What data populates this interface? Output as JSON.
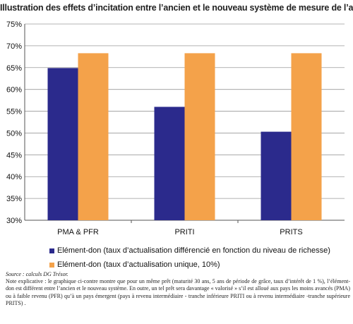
{
  "chart_data": {
    "type": "bar",
    "title": "Illustration des effets d’incitation entre l’ancien et le nouveau système de mesure de l’aide",
    "categories": [
      "PMA & PFR",
      "PRITI",
      "PRITS"
    ],
    "series": [
      {
        "name": "Elément-don (taux d’actualisation différencié en fonction du niveau de richesse)",
        "values": [
          64.9,
          56.0,
          50.3
        ],
        "color": "#2b2a8c"
      },
      {
        "name": "Elément-don (taux d’actualisation unique, 10%)",
        "values": [
          68.3,
          68.3,
          68.3
        ],
        "color": "#f4a24a"
      }
    ],
    "ylim": [
      30,
      75
    ],
    "yticks": [
      "30%",
      "35%",
      "40%",
      "45%",
      "50%",
      "55%",
      "60%",
      "65%",
      "70%",
      "75%"
    ],
    "grid": true,
    "legend_position": "bottom"
  },
  "source": "Source : calculs DG Trésor.",
  "note": "Note explicative : le graphique ci-contre montre que pour un même prêt (maturité 30 ans, 5 ans de période de grâce, taux d’intérêt de 1 %), l’élément-don est différent entre l’ancien et le nouveau système. En outre, un tel prêt sera davantage « valorisé » s’il est alloué aux pays les moins avancés (PMA) ou à faible revenu (PFR) qu’à un pays émergent (pays à revenu intermédiaire - tranche inférieure PRITI ou à revenu intermédiaire -tranche supérieure PRITS) ."
}
